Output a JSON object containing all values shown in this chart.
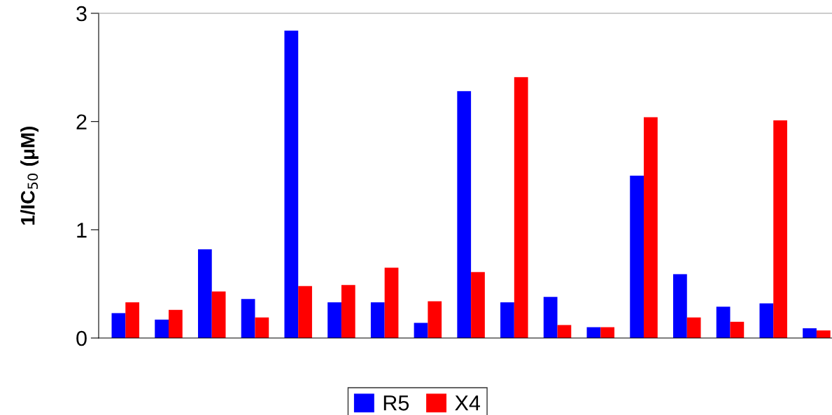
{
  "chart_data": {
    "type": "bar",
    "ylabel": "1/IC$_{50}$ (μM)",
    "categories": [
      null,
      null,
      null,
      null,
      null,
      null,
      null,
      null,
      null,
      null,
      null,
      null,
      null,
      null,
      null,
      null,
      null
    ],
    "series": [
      {
        "name": "R5",
        "color": "#0000ff",
        "values": [
          0.23,
          0.17,
          0.82,
          0.36,
          2.84,
          0.33,
          0.33,
          0.14,
          2.28,
          0.33,
          0.38,
          0.1,
          1.5,
          0.59,
          0.29,
          0.32,
          0.09
        ]
      },
      {
        "name": "X4",
        "color": "#ff0000",
        "values": [
          0.33,
          0.26,
          0.43,
          0.19,
          0.48,
          0.49,
          0.65,
          0.34,
          0.61,
          2.41,
          0.12,
          0.1,
          2.04,
          0.19,
          0.15,
          2.01,
          0.07
        ]
      }
    ],
    "ylim": [
      0,
      3
    ],
    "yticks": [
      0,
      1,
      2,
      3
    ],
    "grid": false,
    "legend": "bottom"
  }
}
